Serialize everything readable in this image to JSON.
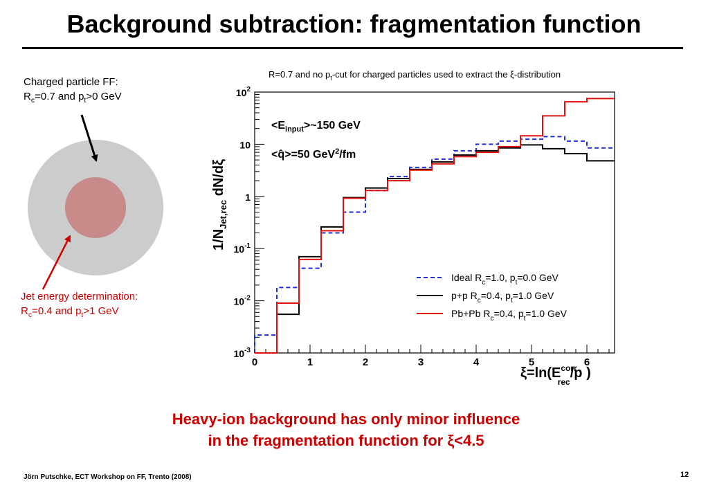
{
  "slide": {
    "title": "Background subtraction: fragmentation function",
    "page_number": "12",
    "footer": "Jörn Putschke, ECT Workshop on FF, Trento (2008)"
  },
  "caption": {
    "pre": "R=0.7 and no p",
    "sub": "t",
    "post": "-cut for charged particles used to extract the ξ-distribution"
  },
  "diagram": {
    "ff_label": {
      "line1": "Charged particle FF:",
      "r": "R",
      "r_sub": "c",
      "mid": "=0.7 and p",
      "p_sub": "t",
      "end": ">0 GeV"
    },
    "jet_label": {
      "line1": "Jet energy determination:",
      "r": "R",
      "r_sub": "c",
      "mid": "=0.4 and p",
      "p_sub": "t",
      "end": ">1 GeV"
    },
    "colors": {
      "outer": "#cccccc",
      "inner": "#c98a8a",
      "jet_text": "#cc0000",
      "arrow_red": "#cc0000"
    }
  },
  "conclusion": {
    "line1": "Heavy-ion background has only minor influence",
    "line2": "in the fragmentation function for ξ<4.5"
  },
  "chart_data": {
    "type": "line",
    "step": true,
    "yscale": "log",
    "xlim": [
      0,
      6.5
    ],
    "ylim": [
      0.001,
      100
    ],
    "xticks": [
      "0",
      "1",
      "2",
      "3",
      "4",
      "5",
      "6"
    ],
    "yticks": [
      {
        "b": "10",
        "e": "-3"
      },
      {
        "b": "10",
        "e": "-2"
      },
      {
        "b": "10",
        "e": "-1"
      },
      {
        "b": "1",
        "e": ""
      },
      {
        "b": "10",
        "e": ""
      },
      {
        "b": "10",
        "e": "2"
      }
    ],
    "xlabel": {
      "pre": "ξ=ln(E",
      "sup": "corr",
      "sub": "rec",
      "post": "/p )"
    },
    "ylabel": {
      "pre": "1/N",
      "sub": "Jet,rec",
      "post": " dN/dξ"
    },
    "annotations": [
      {
        "pre": "<E",
        "sub": "input",
        "post": ">~150 GeV"
      },
      {
        "pre": "<q̂>=50 GeV",
        "sup": "2",
        "post": "/fm"
      }
    ],
    "bin_edges": [
      0,
      0.4,
      0.8,
      1.2,
      1.6,
      2.0,
      2.4,
      2.8,
      3.2,
      3.6,
      4.0,
      4.4,
      4.8,
      5.2,
      5.6,
      6.0,
      6.5
    ],
    "series": [
      {
        "name": "Ideal R=1.0, pt=0.0 GeV",
        "legend": {
          "a": "Ideal R",
          "a_sub": "c",
          "b": "=1.0, p",
          "b_sub": "t",
          "c": "=0.0 GeV"
        },
        "color": "#1f2fd6",
        "dash": "6,4",
        "values": [
          0.0022,
          0.018,
          0.042,
          0.2,
          0.5,
          1.3,
          2.4,
          3.6,
          5.2,
          7.5,
          10.0,
          11.5,
          12.5,
          14.0,
          11.5,
          8.5
        ]
      },
      {
        "name": "p+p R=0.4, pt=1.0 GeV",
        "legend": {
          "a": "p+p R",
          "a_sub": "c",
          "b": "=0.4, p",
          "b_sub": "t",
          "c": "=1.0 GeV"
        },
        "color": "#000000",
        "dash": "",
        "values": [
          0.0005,
          0.0055,
          0.07,
          0.26,
          0.95,
          1.45,
          2.2,
          3.3,
          4.6,
          6.2,
          7.5,
          8.5,
          9.7,
          8.2,
          6.6,
          4.8
        ]
      },
      {
        "name": "Pb+Pb R=0.4, pt=1.0 GeV",
        "legend": {
          "a": "Pb+Pb R",
          "a_sub": "c",
          "b": "=0.4, p",
          "b_sub": "t",
          "c": "=1.0 GeV"
        },
        "color": "#e01010",
        "dash": "",
        "values": [
          0.0005,
          0.009,
          0.062,
          0.22,
          0.92,
          1.3,
          2.0,
          3.2,
          4.2,
          5.8,
          7.0,
          9.0,
          14.5,
          35.0,
          65.0,
          75.0
        ]
      }
    ]
  }
}
